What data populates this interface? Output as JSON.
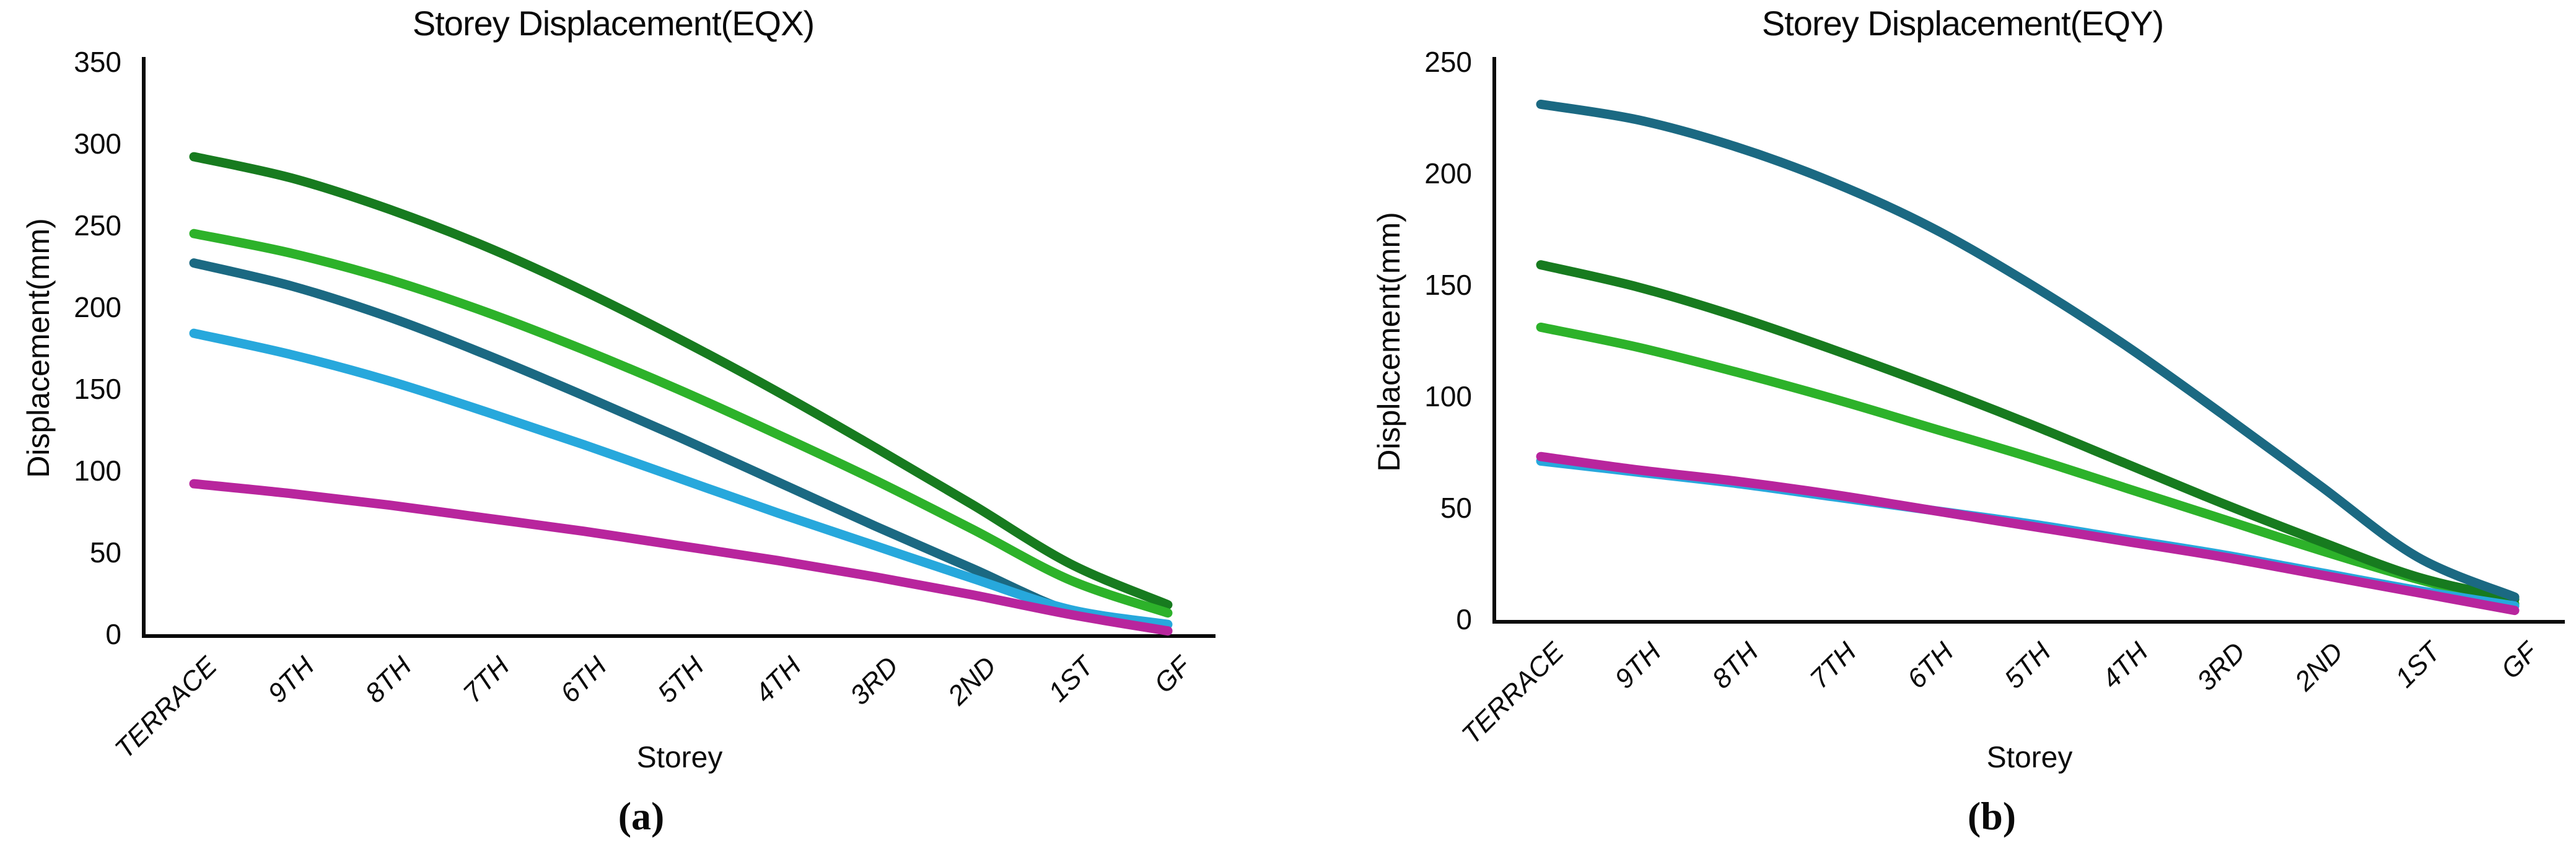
{
  "chart_data": [
    {
      "id": "eqx",
      "type": "line",
      "title": "Storey Displacement(EQX)",
      "caption": "(a)",
      "xlabel": "Storey",
      "ylabel": "Displacement(mm)",
      "categories": [
        "TERRACE",
        "9TH",
        "8TH",
        "7TH",
        "6TH",
        "5TH",
        "4TH",
        "3RD",
        "2ND",
        "1ST",
        "GF"
      ],
      "y_ticks": [
        0,
        50,
        100,
        150,
        200,
        250,
        300,
        350
      ],
      "ylim": [
        0,
        350
      ],
      "grid": false,
      "legend": "none",
      "series": [
        {
          "name": "dark-green",
          "color": "#177B1F",
          "values": [
            292,
            279,
            260,
            237,
            210,
            180,
            148,
            114,
            79,
            43,
            18
          ]
        },
        {
          "name": "bright-green",
          "color": "#2DB22A",
          "values": [
            245,
            233,
            217,
            197,
            174,
            149,
            122,
            94,
            64,
            33,
            13
          ]
        },
        {
          "name": "dark-teal",
          "color": "#1B6982",
          "values": [
            227,
            213,
            194,
            171,
            146,
            120,
            93,
            66,
            40,
            14,
            2
          ]
        },
        {
          "name": "light-blue",
          "color": "#27A8DC",
          "values": [
            184,
            171,
            155,
            136,
            116,
            95,
            74,
            54,
            34,
            15,
            6
          ]
        },
        {
          "name": "magenta",
          "color": "#B8259D",
          "values": [
            92,
            86,
            79,
            71,
            63,
            54,
            45,
            35,
            24,
            12,
            2
          ]
        }
      ]
    },
    {
      "id": "eqy",
      "type": "line",
      "title": "Storey Displacement(EQY)",
      "caption": "(b)",
      "xlabel": "Storey",
      "ylabel": "Displacement(mm)",
      "categories": [
        "TERRACE",
        "9TH",
        "8TH",
        "7TH",
        "6TH",
        "5TH",
        "4TH",
        "3RD",
        "2ND",
        "1ST",
        "GF"
      ],
      "y_ticks": [
        0,
        50,
        100,
        150,
        200,
        250
      ],
      "ylim": [
        0,
        250
      ],
      "grid": false,
      "legend": "none",
      "series": [
        {
          "name": "bright-green",
          "color": "#2DB22A",
          "values": [
            131,
            122,
            111,
            99,
            86,
            73,
            59,
            45,
            31,
            18,
            7
          ]
        },
        {
          "name": "dark-green",
          "color": "#177B1F",
          "values": [
            159,
            149,
            136,
            121,
            105,
            88,
            70,
            52,
            35,
            19,
            9
          ]
        },
        {
          "name": "dark-teal",
          "color": "#1B6982",
          "values": [
            231,
            224,
            212,
            196,
            176,
            151,
            123,
            92,
            60,
            28,
            10
          ]
        },
        {
          "name": "light-blue",
          "color": "#27A8DC",
          "values": [
            71,
            66,
            61,
            55,
            49,
            43,
            36,
            29,
            21,
            13,
            6
          ]
        },
        {
          "name": "magenta",
          "color": "#B8259D",
          "values": [
            73,
            67,
            62,
            56,
            49,
            42,
            35,
            28,
            20,
            12,
            4
          ]
        }
      ]
    }
  ]
}
